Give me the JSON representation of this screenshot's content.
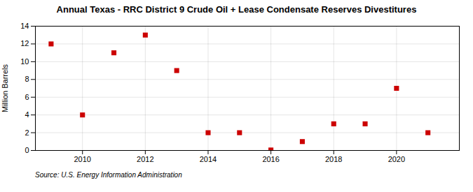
{
  "chart_data": {
    "type": "scatter",
    "title": "Annual Texas - RRC District 9 Crude Oil + Lease Condensate Reserves Divestitures",
    "ylabel": "Million Barrels",
    "source": "Source: U.S. Energy Information Administration",
    "x": [
      2009,
      2010,
      2011,
      2012,
      2013,
      2014,
      2015,
      2016,
      2017,
      2018,
      2019,
      2020,
      2021
    ],
    "values": [
      12.0,
      4.0,
      11.0,
      13.0,
      9.0,
      2.0,
      2.0,
      0.05,
      1.0,
      3.0,
      3.0,
      7.0,
      2.0
    ],
    "color": "#cc0000",
    "marker": "square",
    "xlim": [
      2008.5,
      2022.0
    ],
    "ylim": [
      0,
      14
    ],
    "xticks": [
      2010,
      2012,
      2014,
      2016,
      2018,
      2020
    ],
    "yticks": [
      0,
      2,
      4,
      6,
      8,
      10,
      12,
      14
    ],
    "grid": true
  }
}
